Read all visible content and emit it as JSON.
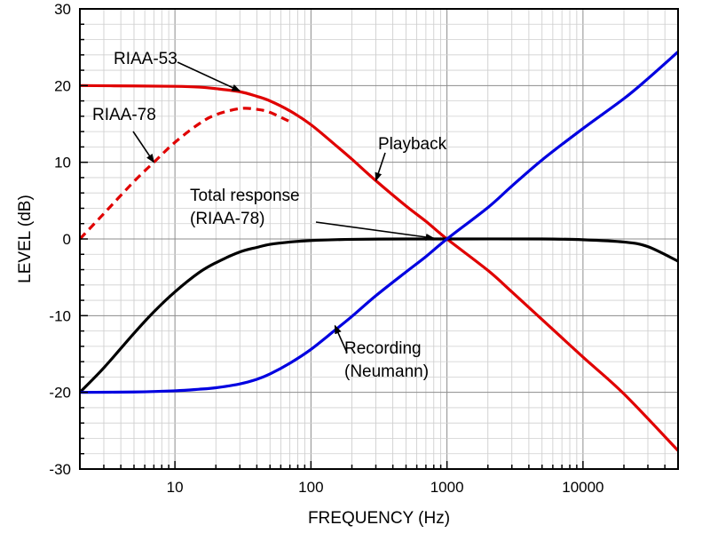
{
  "chart_data": {
    "type": "line",
    "xlabel": "FREQUENCY (Hz)",
    "ylabel": "LEVEL (dB)",
    "xscale": "log",
    "xlim": [
      2,
      50000
    ],
    "ylim": [
      -30,
      30
    ],
    "grid": true,
    "x_ticks": [
      10,
      100,
      1000,
      10000
    ],
    "x_tick_labels": [
      "10",
      "100",
      "1000",
      "10000"
    ],
    "y_ticks": [
      -30,
      -20,
      -10,
      0,
      10,
      20,
      30
    ],
    "y_tick_labels": [
      "-30",
      "-20",
      "-10",
      "0",
      "10",
      "20",
      "30"
    ],
    "series": [
      {
        "name": "RIAA-53",
        "color": "#e00000",
        "style": "solid",
        "x": [
          2,
          5,
          10,
          15,
          20,
          30,
          40,
          50,
          70,
          100,
          150,
          200,
          300,
          500,
          700,
          1000,
          2000,
          3000,
          5000,
          10000,
          20000,
          50000
        ],
        "y": [
          20,
          19.95,
          19.9,
          19.8,
          19.6,
          19.2,
          18.6,
          18.0,
          16.7,
          14.9,
          12.3,
          10.4,
          7.6,
          4.3,
          2.3,
          0,
          -4.1,
          -6.9,
          -10.5,
          -15.4,
          -20.2,
          -27.6
        ]
      },
      {
        "name": "RIAA-78",
        "color": "#e00000",
        "style": "dashed",
        "x": [
          2,
          3,
          5,
          7,
          10,
          15,
          20,
          30,
          40,
          50,
          70
        ],
        "y": [
          0,
          3.3,
          7.5,
          10,
          12.6,
          15,
          16.2,
          17,
          16.9,
          16.5,
          15.3
        ]
      },
      {
        "name": "Total response",
        "color": "#000000",
        "style": "solid",
        "x": [
          2,
          3,
          5,
          7,
          10,
          15,
          20,
          30,
          40,
          50,
          70,
          100,
          200,
          500,
          1000,
          5000,
          10000,
          20000,
          30000,
          50000
        ],
        "y": [
          -20,
          -16.8,
          -12.3,
          -9.5,
          -6.9,
          -4.4,
          -3.1,
          -1.7,
          -1.1,
          -0.7,
          -0.4,
          -0.2,
          -0.05,
          0,
          0,
          0,
          -0.1,
          -0.4,
          -1.0,
          -2.9
        ]
      },
      {
        "name": "Recording",
        "color": "#0000e0",
        "style": "solid",
        "x": [
          2,
          5,
          10,
          15,
          20,
          30,
          40,
          50,
          70,
          100,
          150,
          200,
          300,
          500,
          700,
          1000,
          2000,
          3000,
          5000,
          10000,
          20000,
          30000,
          50000
        ],
        "y": [
          -20,
          -19.95,
          -19.8,
          -19.6,
          -19.4,
          -18.9,
          -18.3,
          -17.6,
          -16.2,
          -14.4,
          -11.9,
          -10.1,
          -7.4,
          -4.3,
          -2.3,
          0,
          4.1,
          6.9,
          10.3,
          14.4,
          18.3,
          20.9,
          24.4
        ]
      }
    ],
    "annotations": [
      {
        "lines": [
          "RIAA-53"
        ],
        "arrow_to": {
          "x": 30,
          "y": 19.3
        }
      },
      {
        "lines": [
          "RIAA-78"
        ],
        "arrow_to": {
          "x": 7,
          "y": 10
        }
      },
      {
        "lines": [
          "Playback"
        ],
        "arrow_to": {
          "x": 300,
          "y": 7.6
        }
      },
      {
        "lines": [
          "Total response",
          "(RIAA-78)"
        ],
        "arrow_to": {
          "x": 800,
          "y": 0.1
        }
      },
      {
        "lines": [
          "Recording",
          "(Neumann)"
        ],
        "arrow_to": {
          "x": 150,
          "y": -11.3
        }
      }
    ]
  }
}
